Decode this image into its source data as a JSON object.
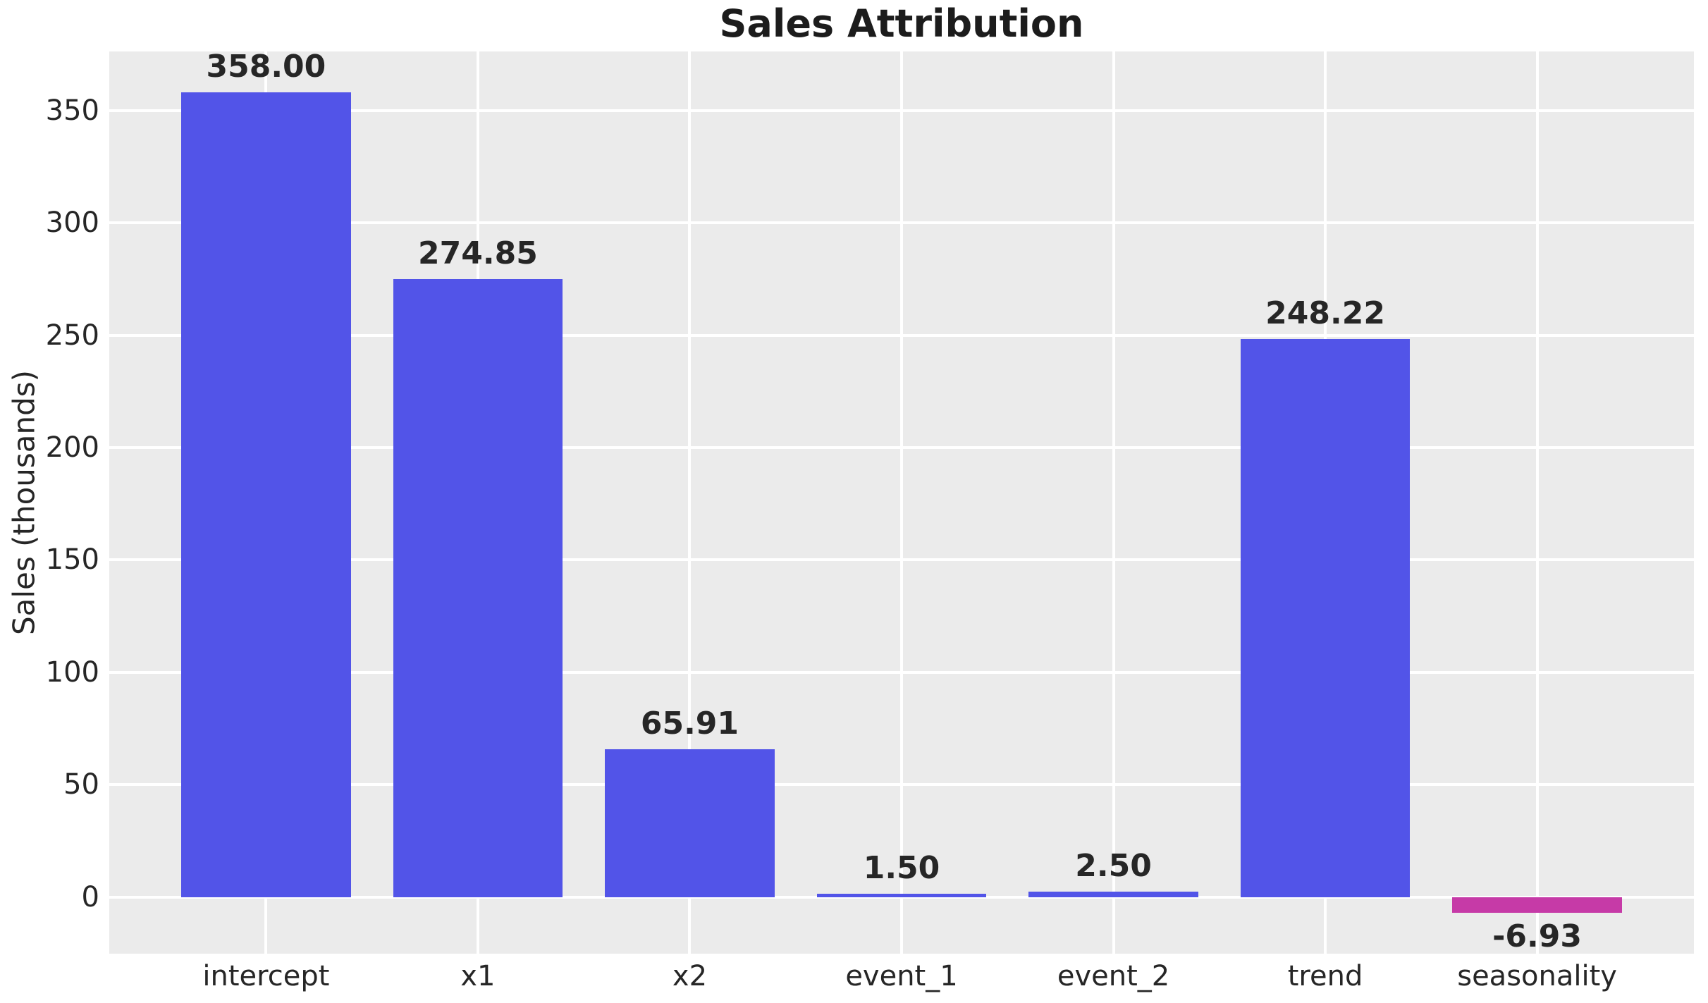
{
  "chart_data": {
    "type": "bar",
    "title": "Sales Attribution",
    "xlabel": "",
    "ylabel": "Sales (thousands)",
    "categories": [
      "intercept",
      "x1",
      "x2",
      "event_1",
      "event_2",
      "trend",
      "seasonality"
    ],
    "values": [
      358.0,
      274.85,
      65.91,
      1.5,
      2.5,
      248.22,
      -6.93
    ],
    "value_labels": [
      "358.00",
      "274.85",
      "65.91",
      "1.50",
      "2.50",
      "248.22",
      "-6.93"
    ],
    "yticks": [
      0,
      50,
      100,
      150,
      200,
      250,
      300,
      350
    ],
    "ylim": [
      -25.2,
      376.25
    ],
    "grid": true,
    "legend_position": "none",
    "colors": {
      "positive_bar": "#5254e8",
      "negative_bar": "#c63aa7",
      "plot_background": "#ebebeb",
      "gridline": "#ffffff",
      "text": "#262626",
      "title_text": "#1c1c1c",
      "figure_background": "#ffffff"
    }
  }
}
